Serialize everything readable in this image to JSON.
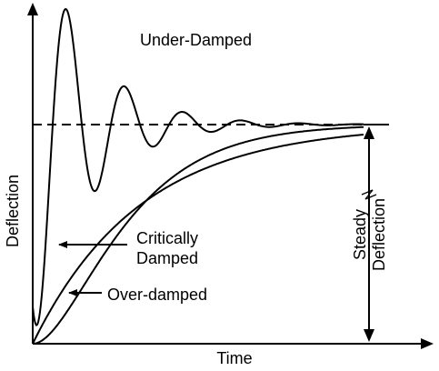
{
  "diagram": {
    "title": "Under-Damped",
    "x_axis_label": "Time",
    "y_axis_label": "Deflection",
    "critically_damped_label_line1": "Critically",
    "critically_damped_label_line2": "Damped",
    "over_damped_label": "Over-damped",
    "steady_deflection_label_line1": "Steady",
    "steady_deflection_label_line2": "Deflection",
    "line_color": "#000000",
    "background_color": "#ffffff"
  }
}
